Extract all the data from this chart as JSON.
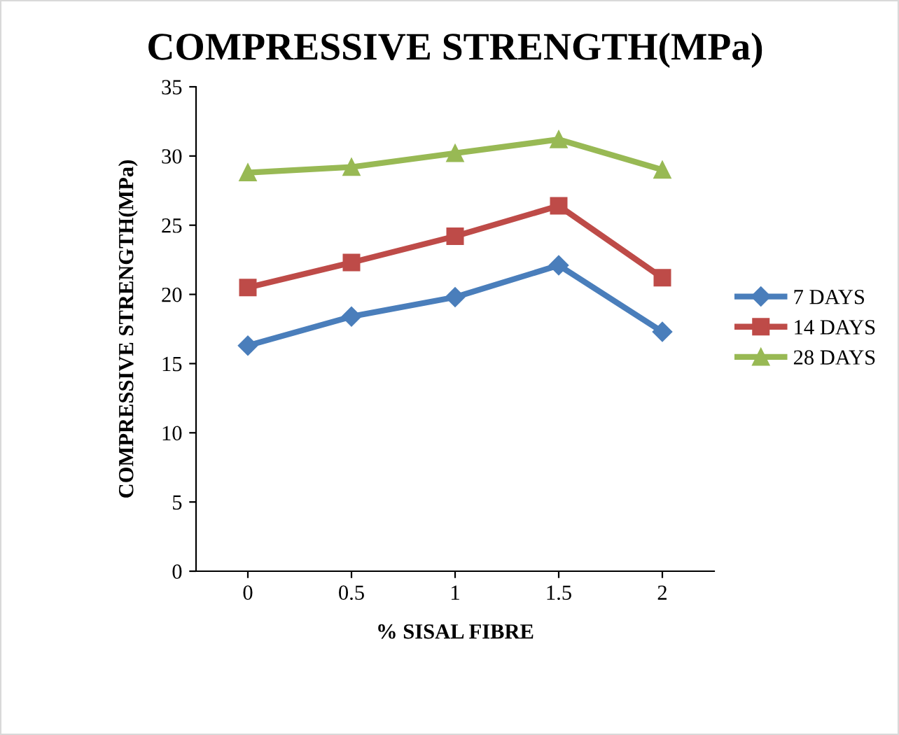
{
  "chart_data": {
    "type": "line",
    "title": "COMPRESSIVE STRENGTH(MPa)",
    "xlabel": "% SISAL FIBRE",
    "ylabel": "COMPRESSIVE STRENGTH(MPa)",
    "categories": [
      "0",
      "0.5",
      "1",
      "1.5",
      "2"
    ],
    "series": [
      {
        "name": "7 DAYS",
        "color": "#4a7ebb",
        "marker": "diamond",
        "values": [
          16.3,
          18.4,
          19.8,
          22.1,
          17.3
        ]
      },
      {
        "name": "14 DAYS",
        "color": "#be4b48",
        "marker": "square",
        "values": [
          20.5,
          22.3,
          24.2,
          26.4,
          21.2
        ]
      },
      {
        "name": "28 DAYS",
        "color": "#98b954",
        "marker": "triangle",
        "values": [
          28.8,
          29.2,
          30.2,
          31.2,
          29.0
        ]
      }
    ],
    "ylim": [
      0,
      35
    ],
    "yticks": [
      0,
      5,
      10,
      15,
      20,
      25,
      30,
      35
    ],
    "grid": false,
    "legend": "right",
    "line_style": "solid"
  }
}
